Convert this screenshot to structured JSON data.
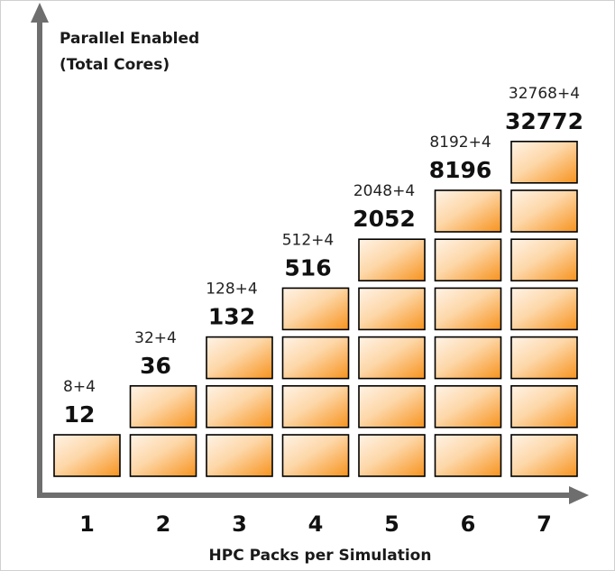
{
  "chart_data": {
    "type": "bar",
    "title": "",
    "ylabel": [
      "Parallel Enabled",
      "(Total Cores)"
    ],
    "xlabel": "HPC Packs per Simulation",
    "categories": [
      "1",
      "2",
      "3",
      "4",
      "5",
      "6",
      "7"
    ],
    "values": [
      1,
      2,
      3,
      4,
      5,
      6,
      7
    ],
    "formula_labels": [
      "8+4",
      "32+4",
      "128+4",
      "512+4",
      "2048+4",
      "8192+4",
      "32768+4"
    ],
    "total_labels": [
      "12",
      "36",
      "132",
      "516",
      "2052",
      "8196",
      "32772"
    ],
    "bar_style": "stacked-blocks",
    "block_colors": {
      "light": "#fff3e6",
      "dark": "#f7931e",
      "border": "#000000"
    },
    "axis_color": "#6e6e6e",
    "grid": false,
    "legend": "none"
  }
}
